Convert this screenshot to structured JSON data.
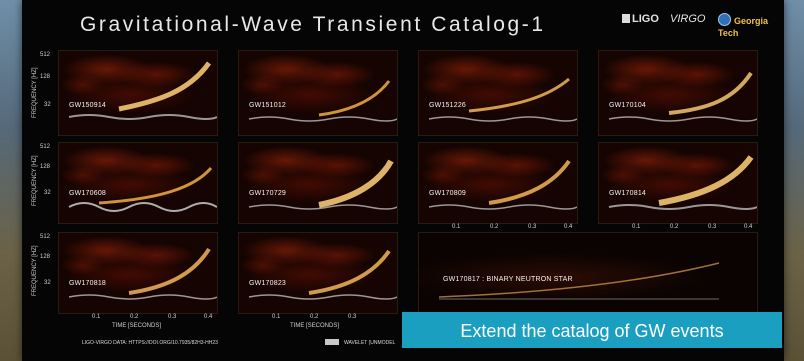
{
  "poster": {
    "title": "Gravitational-Wave Transient Catalog-1",
    "logos": {
      "ligo": "LIGO",
      "virgo": "VIRGO",
      "georgia_tech": "Georgia Tech"
    },
    "y_axis": {
      "label": "FREQUENCY [HZ]",
      "ticks": [
        "512",
        "128",
        "32"
      ]
    },
    "x_axis": {
      "label": "TIME [SECONDS]",
      "ticks": [
        "0.1",
        "0.2",
        "0.3",
        "0.4"
      ]
    },
    "events": [
      "GW150914",
      "GW151012",
      "GW151226",
      "GW170104",
      "GW170608",
      "GW170729",
      "GW170809",
      "GW170814",
      "GW170818",
      "GW170823",
      "GW170817 : BINARY NEUTRON STAR"
    ],
    "footer_data": "LIGO-VIRGO DATA: HTTPS://DOI.ORG/10.7935/82H3-HH23",
    "footer_legend": "WAVELET (UNMODEL"
  },
  "cta": {
    "label": "Extend the catalog of GW events"
  },
  "colors": {
    "cta": "#1a9fc0",
    "poster_bg": "#050505"
  }
}
